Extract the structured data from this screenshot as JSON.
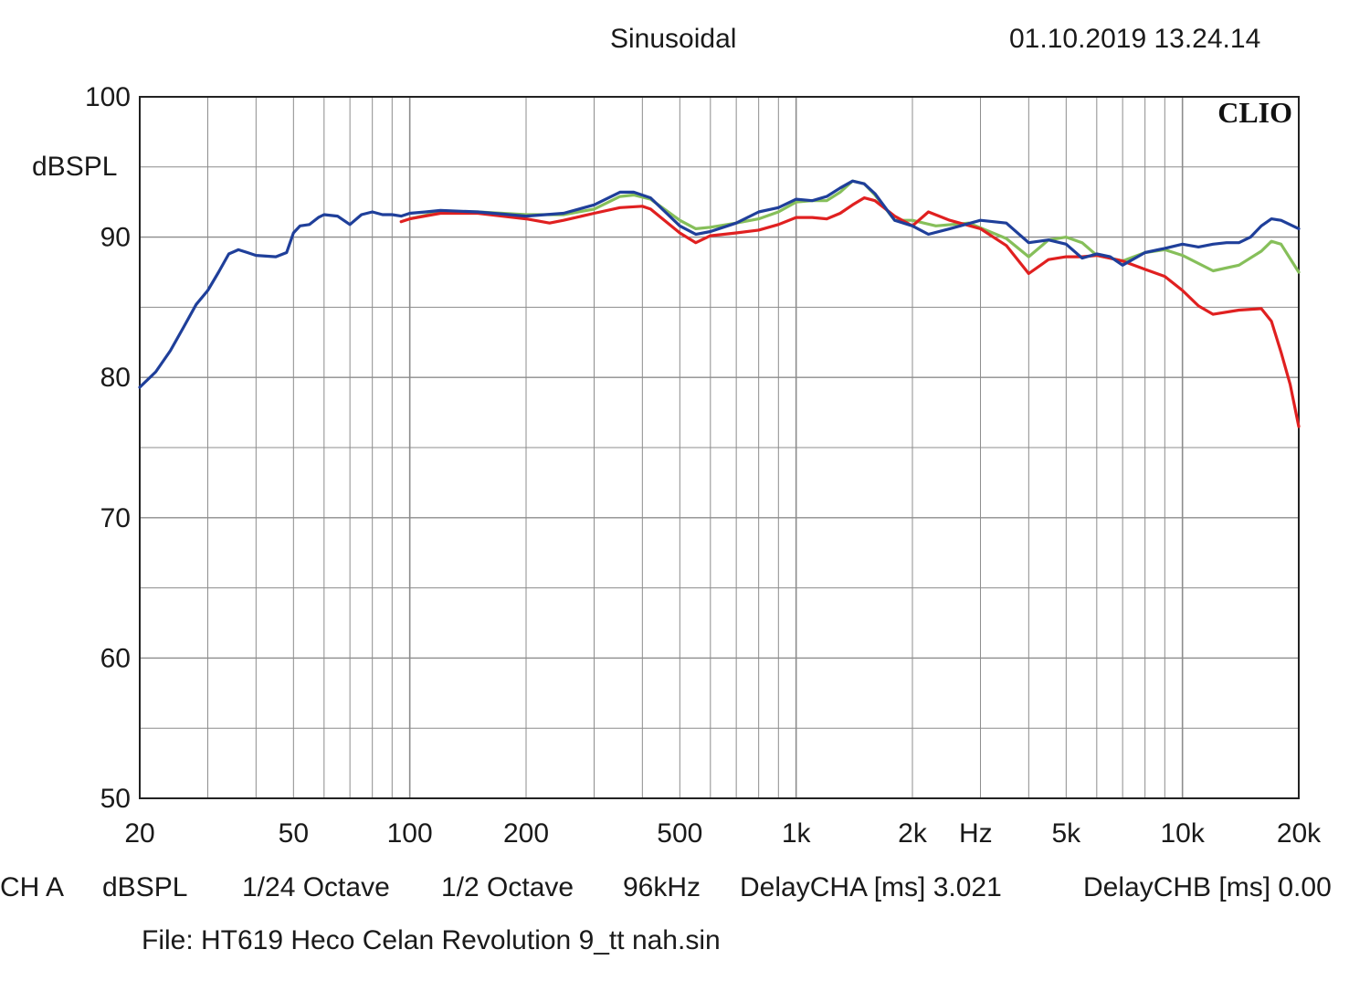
{
  "header": {
    "title": "Sinusoidal",
    "datetime": "01.10.2019 13.24.14"
  },
  "footer": {
    "channel": "CH A",
    "unit": "dBSPL",
    "resolution": "1/24 Octave",
    "smoothing": "1/2 Octave",
    "sample_rate": "96kHz",
    "delay_cha": "DelayCHA [ms] 3.021",
    "delay_chb": "DelayCHB [ms] 0.00",
    "file": "File: HT619 Heco Celan Revolution 9_tt nah.sin"
  },
  "chart_data": {
    "type": "line",
    "brand": "CLIO",
    "ylabel": "dBSPL",
    "xlabel": "Hz",
    "x_scale": "log",
    "xlim": [
      20,
      20000
    ],
    "ylim": [
      50,
      100
    ],
    "grid": true,
    "y_ticks": [
      50,
      60,
      70,
      80,
      90,
      100
    ],
    "y_tick_labels": [
      "50",
      "60",
      "70",
      "80",
      "90",
      "100"
    ],
    "x_ticks": [
      20,
      50,
      100,
      200,
      500,
      1000,
      2000,
      5000,
      10000,
      20000
    ],
    "x_tick_labels": [
      "20",
      "50",
      "100",
      "200",
      "500",
      "1k",
      "2k",
      "5k",
      "10k",
      "20k"
    ],
    "colors": {
      "blue": "#1f3f9a",
      "green": "#86bf5a",
      "red": "#e02020",
      "grid": "#8c8c8c"
    },
    "series": [
      {
        "color": "#86bf5a",
        "x": [
          100,
          120,
          150,
          200,
          250,
          300,
          350,
          380,
          420,
          500,
          550,
          600,
          700,
          800,
          900,
          1000,
          1100,
          1200,
          1300,
          1400,
          1500,
          1600,
          1800,
          2000,
          2300,
          2800,
          3500,
          4000,
          4500,
          5000,
          5500,
          6000,
          6500,
          7000,
          8000,
          9000,
          10000,
          12000,
          14000,
          16000,
          17000,
          18000,
          20000
        ],
        "y": [
          91.3,
          91.8,
          91.8,
          91.6,
          91.6,
          92.0,
          92.9,
          93.0,
          92.7,
          91.2,
          90.6,
          90.7,
          91.0,
          91.3,
          91.8,
          92.5,
          92.6,
          92.6,
          93.2,
          94.0,
          93.8,
          93.0,
          91.2,
          91.2,
          90.8,
          91.0,
          89.9,
          88.6,
          89.8,
          90.0,
          89.6,
          88.7,
          88.5,
          88.3,
          88.9,
          89.1,
          88.7,
          87.6,
          88.0,
          89.0,
          89.7,
          89.5,
          87.5
        ]
      },
      {
        "color": "#e02020",
        "x": [
          95,
          100,
          120,
          150,
          200,
          230,
          250,
          300,
          350,
          400,
          420,
          500,
          550,
          600,
          700,
          800,
          900,
          1000,
          1100,
          1200,
          1300,
          1400,
          1500,
          1600,
          1800,
          2000,
          2200,
          2500,
          3000,
          3500,
          4000,
          4500,
          5000,
          5500,
          6000,
          7000,
          8000,
          9000,
          10000,
          11000,
          12000,
          14000,
          16000,
          17000,
          18000,
          19000,
          20000
        ],
        "y": [
          91.1,
          91.3,
          91.7,
          91.7,
          91.3,
          91.0,
          91.2,
          91.7,
          92.1,
          92.2,
          92.0,
          90.3,
          89.6,
          90.1,
          90.3,
          90.5,
          90.9,
          91.4,
          91.4,
          91.3,
          91.7,
          92.3,
          92.8,
          92.6,
          91.5,
          90.8,
          91.8,
          91.2,
          90.6,
          89.4,
          87.4,
          88.4,
          88.6,
          88.6,
          88.7,
          88.3,
          87.7,
          87.2,
          86.2,
          85.1,
          84.5,
          84.8,
          84.9,
          84.0,
          81.8,
          79.5,
          76.5
        ]
      },
      {
        "color": "#1f3f9a",
        "x": [
          20,
          22,
          24,
          26,
          28,
          30,
          32,
          34,
          36,
          38,
          40,
          45,
          48,
          50,
          52,
          55,
          58,
          60,
          65,
          70,
          75,
          80,
          85,
          90,
          95,
          100,
          110,
          120,
          150,
          200,
          250,
          300,
          350,
          380,
          420,
          500,
          550,
          600,
          700,
          800,
          900,
          1000,
          1100,
          1200,
          1300,
          1400,
          1500,
          1600,
          1800,
          2000,
          2200,
          2500,
          3000,
          3500,
          4000,
          4500,
          5000,
          5500,
          6000,
          6500,
          7000,
          8000,
          9000,
          10000,
          11000,
          12000,
          13000,
          14000,
          15000,
          16000,
          17000,
          18000,
          20000
        ],
        "y": [
          79.3,
          80.4,
          81.9,
          83.6,
          85.2,
          86.2,
          87.5,
          88.8,
          89.1,
          88.9,
          88.7,
          88.6,
          88.9,
          90.3,
          90.8,
          90.9,
          91.4,
          91.6,
          91.5,
          90.9,
          91.6,
          91.8,
          91.6,
          91.6,
          91.5,
          91.7,
          91.8,
          91.9,
          91.8,
          91.5,
          91.7,
          92.3,
          93.2,
          93.2,
          92.8,
          90.8,
          90.2,
          90.4,
          91.0,
          91.8,
          92.1,
          92.7,
          92.6,
          92.9,
          93.5,
          94.0,
          93.8,
          93.1,
          91.2,
          90.8,
          90.2,
          90.6,
          91.2,
          91.0,
          89.6,
          89.8,
          89.5,
          88.5,
          88.8,
          88.6,
          88.0,
          88.9,
          89.2,
          89.5,
          89.3,
          89.5,
          89.6,
          89.6,
          90.0,
          90.8,
          91.3,
          91.2,
          90.6
        ]
      }
    ]
  }
}
